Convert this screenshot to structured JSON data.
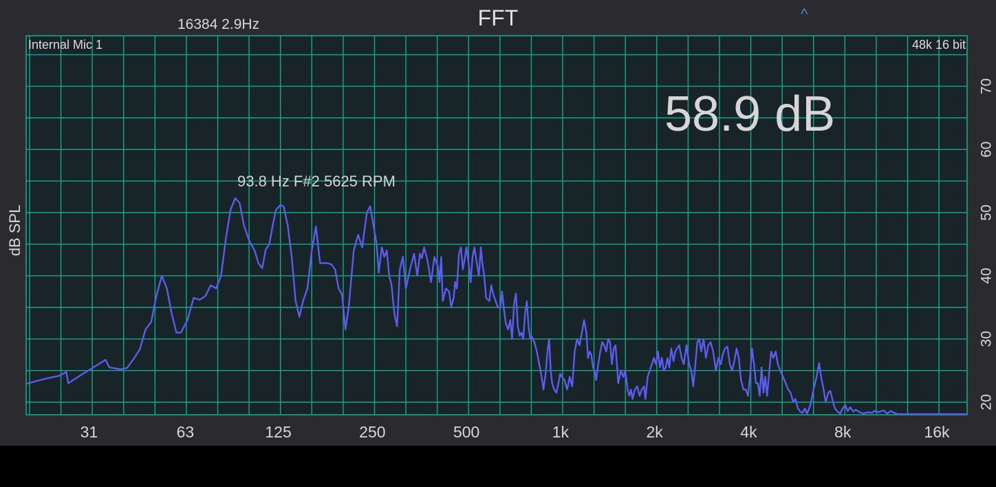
{
  "header": {
    "fft_info": "16384  2.9Hz",
    "title": "FFT",
    "caret": "^"
  },
  "chart_data": {
    "type": "line",
    "input_label": "Internal Mic 1",
    "format_label": "48k 16 bit",
    "level_readout": "58.9 dB",
    "peak_annotation": "93.8 Hz F#2 5625 RPM",
    "ylabel": "dB SPL",
    "xscale": "log",
    "xlim": [
      19.5,
      20000
    ],
    "ylim": [
      18,
      78
    ],
    "grid": true,
    "x_ticks": [
      {
        "value": 31,
        "label": "31"
      },
      {
        "value": 63,
        "label": "63"
      },
      {
        "value": 125,
        "label": "125"
      },
      {
        "value": 250,
        "label": "250"
      },
      {
        "value": 500,
        "label": "500"
      },
      {
        "value": 1000,
        "label": "1k"
      },
      {
        "value": 2000,
        "label": "2k"
      },
      {
        "value": 4000,
        "label": "4k"
      },
      {
        "value": 8000,
        "label": "8k"
      },
      {
        "value": 16000,
        "label": "16k"
      }
    ],
    "y_ticks": [
      {
        "value": 20,
        "label": "20"
      },
      {
        "value": 30,
        "label": "30"
      },
      {
        "value": 40,
        "label": "40"
      },
      {
        "value": 50,
        "label": "50"
      },
      {
        "value": 60,
        "label": "60"
      },
      {
        "value": 70,
        "label": "70"
      }
    ],
    "series": [
      {
        "color": "#5b5cf0",
        "points": [
          [
            19.5,
            22.9
          ],
          [
            22,
            23.6
          ],
          [
            25,
            24.2
          ],
          [
            26.2,
            24.8
          ],
          [
            26.6,
            23.0
          ],
          [
            29,
            24.2
          ],
          [
            32,
            25.5
          ],
          [
            35,
            26.7
          ],
          [
            36,
            25.5
          ],
          [
            39,
            25.2
          ],
          [
            41,
            25.4
          ],
          [
            43,
            26.8
          ],
          [
            45,
            28.3
          ],
          [
            47,
            31.5
          ],
          [
            49,
            32.7
          ],
          [
            51,
            37
          ],
          [
            53,
            40
          ],
          [
            55,
            38
          ],
          [
            57,
            34
          ],
          [
            59,
            31
          ],
          [
            61,
            31
          ],
          [
            64,
            33
          ],
          [
            67,
            36.5
          ],
          [
            70,
            36.2
          ],
          [
            73,
            36.8
          ],
          [
            76,
            38.5
          ],
          [
            79,
            38
          ],
          [
            82,
            40
          ],
          [
            85,
            46
          ],
          [
            88,
            50.5
          ],
          [
            91,
            52.3
          ],
          [
            94,
            51.5
          ],
          [
            97,
            48
          ],
          [
            101,
            45.5
          ],
          [
            105,
            44
          ],
          [
            108,
            42
          ],
          [
            111,
            41.2
          ],
          [
            114,
            44.2
          ],
          [
            117,
            45
          ],
          [
            120,
            48
          ],
          [
            123,
            50.5
          ],
          [
            127,
            51.2
          ],
          [
            130,
            51
          ],
          [
            134,
            48
          ],
          [
            138,
            43
          ],
          [
            142,
            36
          ],
          [
            146,
            33.5
          ],
          [
            150,
            36
          ],
          [
            155,
            38
          ],
          [
            160,
            44
          ],
          [
            165,
            47.8
          ],
          [
            170,
            42
          ],
          [
            175,
            42
          ],
          [
            180,
            42
          ],
          [
            185,
            41.8
          ],
          [
            190,
            41
          ],
          [
            195,
            38
          ],
          [
            200,
            37
          ],
          [
            205,
            31.5
          ],
          [
            210,
            35
          ],
          [
            218,
            44
          ],
          [
            225,
            46.5
          ],
          [
            232,
            44.5
          ],
          [
            240,
            50
          ],
          [
            246,
            51
          ],
          [
            252,
            48
          ],
          [
            258,
            45
          ],
          [
            262,
            40.5
          ],
          [
            268,
            44.5
          ],
          [
            273,
            43
          ],
          [
            278,
            44
          ],
          [
            283,
            40
          ],
          [
            288,
            38.5
          ],
          [
            294,
            34
          ],
          [
            300,
            32
          ],
          [
            306,
            41
          ],
          [
            313,
            43
          ],
          [
            320,
            38
          ],
          [
            330,
            41
          ],
          [
            340,
            43.5
          ],
          [
            348,
            40
          ],
          [
            355,
            43.5
          ],
          [
            360,
            42.8
          ],
          [
            366,
            44.5
          ],
          [
            375,
            42.5
          ],
          [
            385,
            39
          ],
          [
            395,
            43
          ],
          [
            405,
            41.5
          ],
          [
            410,
            39
          ],
          [
            415,
            43
          ],
          [
            420,
            36
          ],
          [
            430,
            38
          ],
          [
            440,
            37.5
          ],
          [
            447,
            35
          ],
          [
            455,
            36.5
          ],
          [
            460,
            39
          ],
          [
            466,
            38
          ],
          [
            473,
            43.5
          ],
          [
            480,
            44.5
          ],
          [
            487,
            41
          ],
          [
            493,
            42.5
          ],
          [
            500,
            44.5
          ],
          [
            508,
            42
          ],
          [
            516,
            39
          ],
          [
            523,
            43
          ],
          [
            530,
            44.5
          ],
          [
            540,
            42
          ],
          [
            548,
            40
          ],
          [
            556,
            44.5
          ],
          [
            562,
            42
          ],
          [
            570,
            40
          ],
          [
            578,
            36.5
          ],
          [
            592,
            36
          ],
          [
            600,
            38.5
          ],
          [
            610,
            37
          ],
          [
            620,
            36
          ],
          [
            630,
            35
          ],
          [
            642,
            35
          ],
          [
            650,
            37.5
          ],
          [
            660,
            34.5
          ],
          [
            668,
            32.5
          ],
          [
            680,
            31.5
          ],
          [
            690,
            33
          ],
          [
            700,
            30
          ],
          [
            710,
            35.5
          ],
          [
            720,
            37.2
          ],
          [
            730,
            32
          ],
          [
            740,
            30.5
          ],
          [
            750,
            31
          ],
          [
            760,
            30
          ],
          [
            770,
            34
          ],
          [
            780,
            36
          ],
          [
            790,
            32
          ],
          [
            800,
            30
          ],
          [
            812,
            30.3
          ],
          [
            825,
            29.5
          ],
          [
            840,
            28
          ],
          [
            855,
            26
          ],
          [
            870,
            24
          ],
          [
            882,
            22
          ],
          [
            896,
            24.5
          ],
          [
            908,
            28
          ],
          [
            920,
            30
          ],
          [
            930,
            25
          ],
          [
            940,
            23
          ],
          [
            955,
            22
          ],
          [
            970,
            21.5
          ],
          [
            985,
            23
          ],
          [
            998,
            24.5
          ],
          [
            1010,
            24
          ],
          [
            1030,
            23.5
          ],
          [
            1050,
            22
          ],
          [
            1070,
            24
          ],
          [
            1090,
            22.5
          ],
          [
            1110,
            28
          ],
          [
            1130,
            30
          ],
          [
            1150,
            29
          ],
          [
            1170,
            31
          ],
          [
            1190,
            33
          ],
          [
            1210,
            31
          ],
          [
            1225,
            27
          ],
          [
            1240,
            28
          ],
          [
            1255,
            27.5
          ],
          [
            1270,
            25.5
          ],
          [
            1285,
            25
          ],
          [
            1300,
            23.5
          ],
          [
            1320,
            26
          ],
          [
            1340,
            28
          ],
          [
            1360,
            29.5
          ],
          [
            1380,
            29
          ],
          [
            1400,
            28
          ],
          [
            1420,
            30
          ],
          [
            1440,
            29.5
          ],
          [
            1460,
            26
          ],
          [
            1480,
            28.5
          ],
          [
            1500,
            29
          ],
          [
            1530,
            23
          ],
          [
            1560,
            25
          ],
          [
            1590,
            24
          ],
          [
            1610,
            25
          ],
          [
            1640,
            22
          ],
          [
            1660,
            21
          ],
          [
            1680,
            22
          ],
          [
            1700,
            20.5
          ],
          [
            1730,
            22
          ],
          [
            1760,
            22.5
          ],
          [
            1790,
            21
          ],
          [
            1820,
            22
          ],
          [
            1850,
            22.5
          ],
          [
            1870,
            20.5
          ],
          [
            1900,
            24
          ],
          [
            1930,
            25
          ],
          [
            1960,
            26
          ],
          [
            1990,
            27
          ],
          [
            2020,
            26
          ],
          [
            2050,
            28
          ],
          [
            2080,
            25.5
          ],
          [
            2110,
            27
          ],
          [
            2140,
            25
          ],
          [
            2170,
            25.5
          ],
          [
            2200,
            27
          ],
          [
            2230,
            25.5
          ],
          [
            2260,
            28.5
          ],
          [
            2300,
            26.5
          ],
          [
            2330,
            28
          ],
          [
            2360,
            28.5
          ],
          [
            2400,
            29
          ],
          [
            2440,
            27
          ],
          [
            2480,
            26
          ],
          [
            2530,
            29
          ],
          [
            2580,
            26
          ],
          [
            2620,
            25
          ],
          [
            2660,
            22.5
          ],
          [
            2700,
            26
          ],
          [
            2740,
            29.5
          ],
          [
            2780,
            30
          ],
          [
            2820,
            28
          ],
          [
            2870,
            30
          ],
          [
            2920,
            27
          ],
          [
            2970,
            29
          ],
          [
            3020,
            29.5
          ],
          [
            3080,
            28
          ],
          [
            3140,
            25
          ],
          [
            3200,
            27
          ],
          [
            3260,
            26
          ],
          [
            3300,
            27.5
          ],
          [
            3360,
            28.5
          ],
          [
            3420,
            28.8
          ],
          [
            3480,
            26
          ],
          [
            3540,
            25
          ],
          [
            3600,
            26.5
          ],
          [
            3660,
            28.5
          ],
          [
            3720,
            27
          ],
          [
            3780,
            23.5
          ],
          [
            3850,
            22
          ],
          [
            3920,
            22
          ],
          [
            3980,
            21
          ],
          [
            4040,
            24
          ],
          [
            4100,
            28.5
          ],
          [
            4160,
            26
          ],
          [
            4220,
            23
          ],
          [
            4280,
            23
          ],
          [
            4340,
            21
          ],
          [
            4400,
            25.5
          ],
          [
            4460,
            21.5
          ],
          [
            4520,
            24
          ],
          [
            4580,
            21
          ],
          [
            4640,
            24
          ],
          [
            4720,
            28
          ],
          [
            4800,
            27
          ],
          [
            4880,
            28
          ],
          [
            4960,
            26
          ],
          [
            5050,
            25
          ],
          [
            5150,
            24
          ],
          [
            5250,
            23
          ],
          [
            5350,
            22
          ],
          [
            5450,
            21.5
          ],
          [
            5550,
            20
          ],
          [
            5650,
            20.5
          ],
          [
            5750,
            19
          ],
          [
            5850,
            18.5
          ],
          [
            5950,
            18.3
          ],
          [
            6050,
            19
          ],
          [
            6150,
            18.2
          ],
          [
            6300,
            19.5
          ],
          [
            6450,
            22
          ],
          [
            6600,
            24
          ],
          [
            6720,
            26.2
          ],
          [
            6820,
            24
          ],
          [
            6950,
            22
          ],
          [
            7050,
            20
          ],
          [
            7200,
            21.5
          ],
          [
            7300,
            21.8
          ],
          [
            7450,
            20
          ],
          [
            7550,
            19
          ],
          [
            7700,
            18.5
          ],
          [
            7850,
            18.2
          ],
          [
            8000,
            19
          ],
          [
            8150,
            19.5
          ],
          [
            8300,
            18.6
          ],
          [
            8450,
            19.2
          ],
          [
            8650,
            18.5
          ],
          [
            8800,
            18.8
          ],
          [
            9000,
            18.5
          ],
          [
            9300,
            18.2
          ],
          [
            9600,
            18.4
          ],
          [
            9900,
            18.3
          ],
          [
            10100,
            18.6
          ],
          [
            10400,
            18.4
          ],
          [
            10800,
            18.7
          ],
          [
            11100,
            18.2
          ],
          [
            11400,
            18.6
          ],
          [
            11700,
            18.3
          ],
          [
            12000,
            18.1
          ],
          [
            13000,
            18.1
          ],
          [
            15000,
            18.1
          ],
          [
            17000,
            18.1
          ],
          [
            20000,
            18.1
          ]
        ]
      }
    ]
  }
}
